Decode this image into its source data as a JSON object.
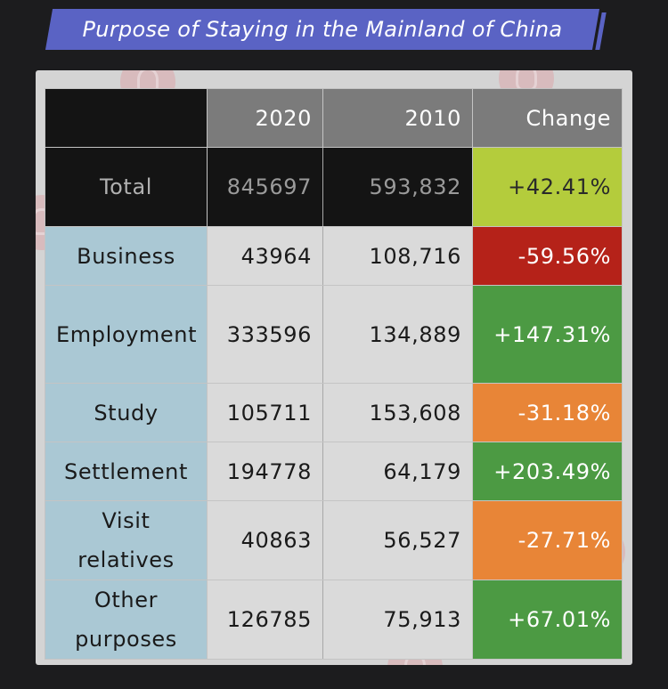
{
  "title": "Purpose of Staying in the Mainland of China",
  "colors": {
    "title_bg": "#5a63c4",
    "header_bg": "#7b7b7b",
    "total_bg": "#141414",
    "category_bg": "#aac8d4",
    "positive_green": "#4c9a43",
    "positive_lime": "#b4cc3c",
    "negative_red": "#b52219",
    "negative_orange": "#e88537"
  },
  "chart_data": {
    "type": "table",
    "columns": [
      "",
      "2020",
      "2010",
      "Change"
    ],
    "rows": [
      {
        "label": "Total",
        "v2020": "845697",
        "v2010": "593,832",
        "change": "+42.41%",
        "color": "lime"
      },
      {
        "label": "Business",
        "v2020": "43964",
        "v2010": "108,716",
        "change": "-59.56%",
        "color": "red"
      },
      {
        "label": "Employment",
        "v2020": "333596",
        "v2010": "134,889",
        "change": "+147.31%",
        "color": "green"
      },
      {
        "label": "Study",
        "v2020": "105711",
        "v2010": "153,608",
        "change": "-31.18%",
        "color": "orange"
      },
      {
        "label": "Settlement",
        "v2020": "194778",
        "v2010": "64,179",
        "change": "+203.49%",
        "color": "green"
      },
      {
        "label": "Visit relatives",
        "v2020": "40863",
        "v2010": "56,527",
        "change": "-27.71%",
        "color": "orange"
      },
      {
        "label": "Other purposes",
        "v2020": "126785",
        "v2010": "75,913",
        "change": "+67.01%",
        "color": "green"
      }
    ]
  }
}
